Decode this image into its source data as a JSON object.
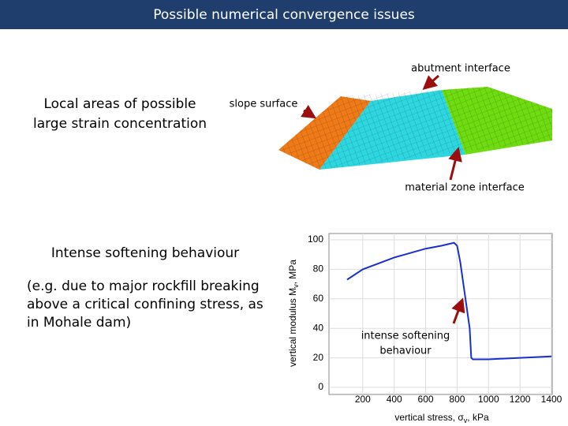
{
  "header": {
    "title": "Possible numerical convergence issues"
  },
  "strain_note": {
    "lines": [
      "Local areas of possible",
      "large strain concentration"
    ]
  },
  "mesh_labels": {
    "abutment": "abutment interface",
    "slope": "slope surface",
    "material": "material zone interface"
  },
  "softening_note": {
    "heading": "Intense softening behaviour",
    "lines": [
      "(e.g. due to major rockfill breaking",
      "above a critical confining stress, as",
      "in Mohale dam)"
    ]
  },
  "chart_data": {
    "type": "line",
    "x_label": {
      "text": "vertical stress, σ",
      "sub": "v",
      "unit": ", kPa"
    },
    "y_label": {
      "text": "vertical modulus M",
      "sub": "v",
      "unit": ", MPa"
    },
    "annotation": [
      "intense softening",
      "behaviour"
    ],
    "x": [
      100,
      200,
      300,
      400,
      500,
      600,
      700,
      780,
      800,
      820,
      840,
      860,
      880,
      890,
      900,
      1000,
      1200,
      1400
    ],
    "values": [
      73,
      80,
      84,
      88,
      91,
      94,
      96,
      98,
      96,
      85,
      70,
      55,
      40,
      20,
      19,
      19,
      20,
      21
    ],
    "color": "#1a2fd0",
    "xlim": [
      0,
      1400
    ],
    "xticks": [
      200,
      400,
      600,
      800,
      1000,
      1200,
      1400
    ],
    "ylim": [
      0,
      100
    ],
    "yticks": [
      0,
      20,
      40,
      60,
      80,
      100
    ],
    "grid": true
  }
}
